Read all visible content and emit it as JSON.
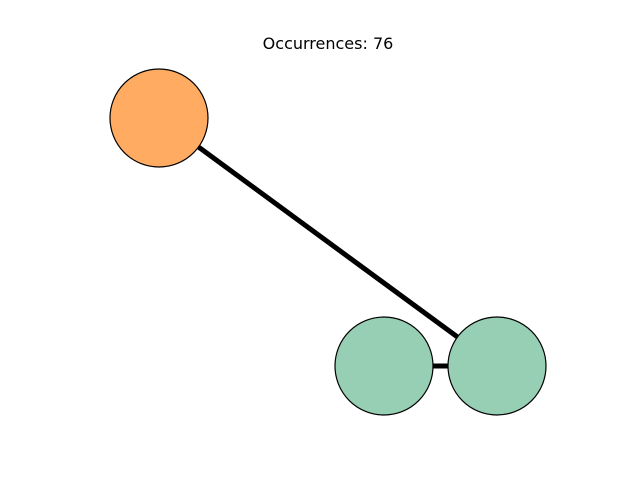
{
  "title": "Occurrences: 76",
  "colors": {
    "node_orange": "#ffab61",
    "node_green": "#97cfb4",
    "edge": "#000000",
    "outline": "#000000"
  },
  "graph": {
    "nodes": [
      {
        "id": "node-orange",
        "color_key": "node_orange"
      },
      {
        "id": "node-green-left",
        "color_key": "node_green"
      },
      {
        "id": "node-green-right",
        "color_key": "node_green"
      }
    ],
    "edges": [
      {
        "source": "node-orange",
        "target": "node-green-right"
      },
      {
        "source": "node-green-left",
        "target": "node-green-right"
      }
    ]
  }
}
